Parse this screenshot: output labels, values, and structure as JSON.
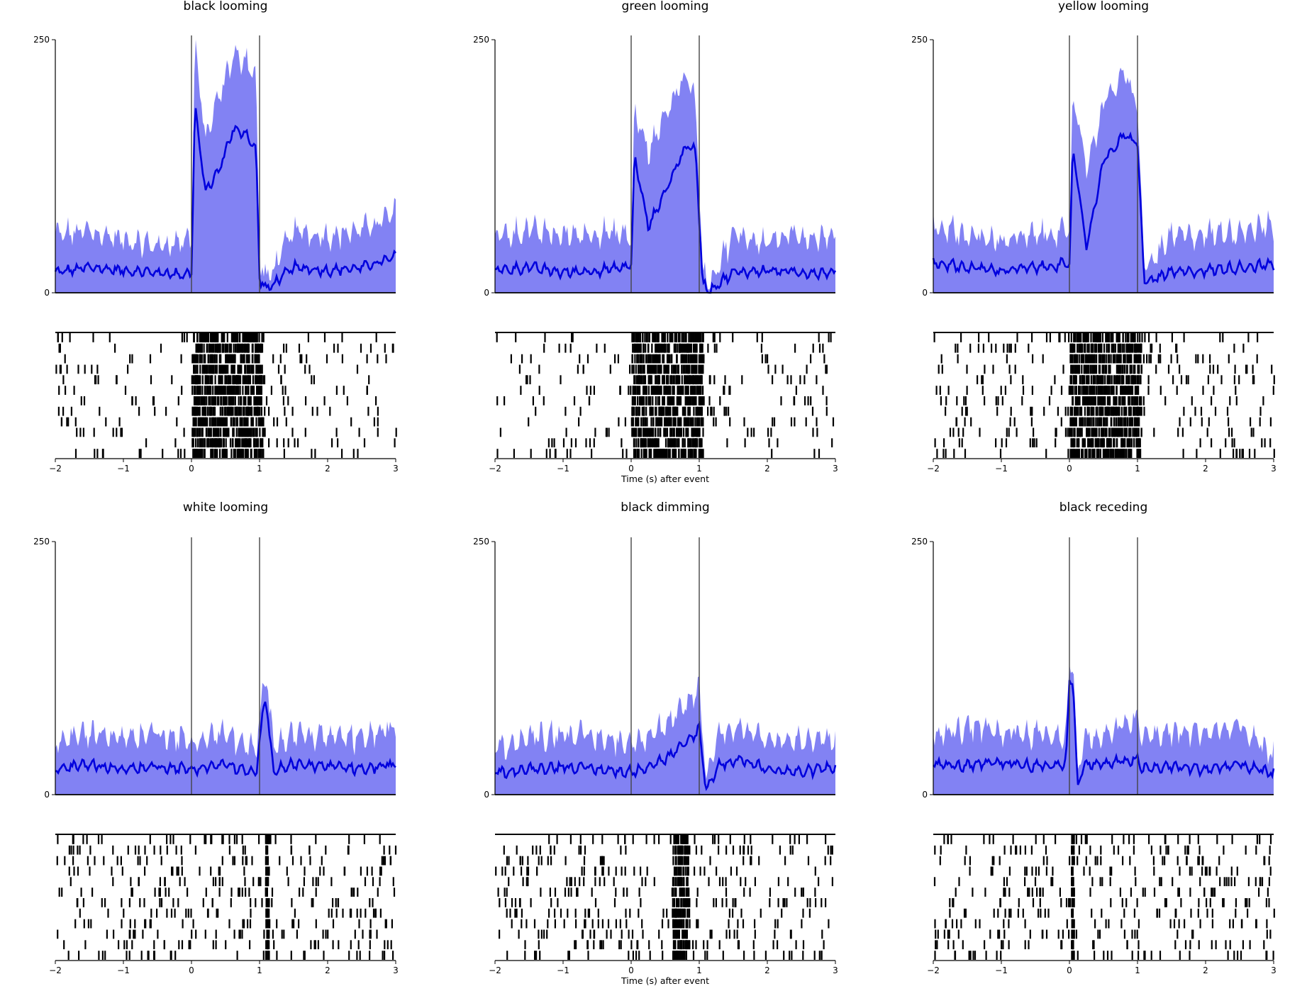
{
  "figure": {
    "xlabel": "Time (s) after event"
  },
  "chart_data": [
    {
      "type": "area",
      "title": "black looming",
      "xlabel": "",
      "xlim": [
        -2,
        3
      ],
      "ylim": [
        0,
        250
      ],
      "yticks": [
        0,
        250
      ],
      "xticks": [
        -2,
        -1,
        0,
        1,
        2,
        3
      ],
      "event_markers": [
        0,
        1
      ],
      "series": [
        {
          "role": "mean",
          "color": "#0000dd",
          "x": [
            -2,
            -1.5,
            -1,
            -0.5,
            -0.1,
            0,
            0.05,
            0.2,
            0.4,
            0.6,
            0.8,
            0.95,
            1,
            1.1,
            1.5,
            2,
            2.5,
            3
          ],
          "values": [
            20,
            25,
            22,
            20,
            18,
            20,
            185,
            100,
            120,
            160,
            158,
            140,
            15,
            3,
            25,
            22,
            25,
            35
          ]
        },
        {
          "role": "upper",
          "color": "#7b7bf2",
          "x": [
            -2,
            -1.5,
            -1,
            -0.5,
            -0.1,
            0,
            0.05,
            0.2,
            0.4,
            0.6,
            0.8,
            0.95,
            1,
            1.1,
            1.5,
            2,
            2.5,
            3
          ],
          "values": [
            55,
            60,
            50,
            45,
            50,
            55,
            245,
            150,
            190,
            230,
            230,
            210,
            30,
            10,
            60,
            55,
            60,
            78
          ]
        }
      ],
      "raster": {
        "trials": 12,
        "dense_window": [
          0,
          1.05
        ],
        "baseline_rate": "low"
      }
    },
    {
      "type": "area",
      "title": "green looming",
      "xlabel": "Time (s) after event",
      "xlim": [
        -2,
        3
      ],
      "ylim": [
        0,
        250
      ],
      "yticks": [
        0,
        250
      ],
      "xticks": [
        -2,
        -1,
        0,
        1,
        2,
        3
      ],
      "event_markers": [
        0,
        1
      ],
      "series": [
        {
          "role": "mean",
          "color": "#0000dd",
          "x": [
            -2,
            -1.5,
            -1,
            -0.5,
            -0.1,
            0,
            0.05,
            0.25,
            0.5,
            0.8,
            0.95,
            1.05,
            1.15,
            1.5,
            2,
            2.5,
            3
          ],
          "values": [
            22,
            25,
            20,
            22,
            25,
            28,
            135,
            65,
            100,
            145,
            140,
            10,
            2,
            20,
            22,
            20,
            20
          ]
        },
        {
          "role": "upper",
          "color": "#7b7bf2",
          "x": [
            -2,
            -1.5,
            -1,
            -0.5,
            -0.1,
            0,
            0.05,
            0.25,
            0.5,
            0.8,
            0.95,
            1.05,
            1.15,
            1.5,
            2,
            2.5,
            3
          ],
          "values": [
            55,
            60,
            55,
            58,
            55,
            50,
            180,
            135,
            175,
            215,
            185,
            20,
            8,
            55,
            50,
            55,
            52
          ]
        }
      ],
      "raster": {
        "trials": 12,
        "dense_window": [
          0,
          1.05
        ],
        "baseline_rate": "low"
      }
    },
    {
      "type": "area",
      "title": "yellow looming",
      "xlabel": "",
      "xlim": [
        -2,
        3
      ],
      "ylim": [
        0,
        250
      ],
      "yticks": [
        0,
        250
      ],
      "xticks": [
        -2,
        -1,
        0,
        1,
        2,
        3
      ],
      "event_markers": [
        0,
        1
      ],
      "series": [
        {
          "role": "mean",
          "color": "#0000dd",
          "x": [
            -2,
            -1.5,
            -1,
            -0.5,
            -0.1,
            0,
            0.05,
            0.25,
            0.5,
            0.8,
            0.95,
            1,
            1.1,
            1.5,
            2,
            2.5,
            3
          ],
          "values": [
            30,
            25,
            22,
            25,
            28,
            25,
            145,
            45,
            130,
            155,
            150,
            148,
            10,
            20,
            22,
            25,
            28
          ]
        },
        {
          "role": "upper",
          "color": "#7b7bf2",
          "x": [
            -2,
            -1.5,
            -1,
            -0.5,
            -0.1,
            0,
            0.05,
            0.25,
            0.5,
            0.8,
            0.95,
            1,
            1.1,
            1.5,
            2,
            2.5,
            3
          ],
          "values": [
            65,
            55,
            50,
            55,
            60,
            50,
            200,
            120,
            185,
            215,
            195,
            180,
            20,
            55,
            55,
            60,
            65
          ]
        }
      ],
      "raster": {
        "trials": 12,
        "dense_window": [
          0,
          1.05
        ],
        "baseline_rate": "medium"
      }
    },
    {
      "type": "area",
      "title": "white looming",
      "xlabel": "",
      "xlim": [
        -2,
        3
      ],
      "ylim": [
        0,
        250
      ],
      "yticks": [
        0,
        250
      ],
      "xticks": [
        -2,
        -1,
        0,
        1,
        2,
        3
      ],
      "event_markers": [
        0,
        1
      ],
      "series": [
        {
          "role": "mean",
          "color": "#0000dd",
          "x": [
            -2,
            -1.5,
            -1,
            -0.5,
            0,
            0.5,
            0.95,
            1.08,
            1.2,
            1.5,
            2,
            2.5,
            3
          ],
          "values": [
            25,
            30,
            25,
            28,
            25,
            30,
            20,
            100,
            25,
            30,
            28,
            25,
            30
          ]
        },
        {
          "role": "upper",
          "color": "#7b7bf2",
          "x": [
            -2,
            -1.5,
            -1,
            -0.5,
            0,
            0.5,
            0.95,
            1.08,
            1.2,
            1.5,
            2,
            2.5,
            3
          ],
          "values": [
            50,
            60,
            55,
            60,
            50,
            60,
            40,
            120,
            50,
            60,
            55,
            55,
            65
          ]
        }
      ],
      "raster": {
        "trials": 12,
        "dense_window": [
          1.08,
          1.13
        ],
        "baseline_rate": "high"
      }
    },
    {
      "type": "area",
      "title": "black dimming",
      "xlabel": "Time (s) after event",
      "xlim": [
        -2,
        3
      ],
      "ylim": [
        0,
        250
      ],
      "yticks": [
        0,
        250
      ],
      "xticks": [
        -2,
        -1,
        0,
        1,
        2,
        3
      ],
      "event_markers": [
        0,
        1
      ],
      "series": [
        {
          "role": "mean",
          "color": "#0000dd",
          "x": [
            -2,
            -1.5,
            -1,
            -0.5,
            0,
            0.5,
            0.8,
            1,
            1.1,
            1.3,
            1.6,
            2,
            2.5,
            3
          ],
          "values": [
            22,
            25,
            28,
            25,
            22,
            35,
            50,
            65,
            5,
            30,
            35,
            25,
            22,
            28
          ]
        },
        {
          "role": "upper",
          "color": "#7b7bf2",
          "x": [
            -2,
            -1.5,
            -1,
            -0.5,
            0,
            0.5,
            0.8,
            1,
            1.1,
            1.3,
            1.6,
            2,
            2.5,
            3
          ],
          "values": [
            45,
            55,
            60,
            55,
            50,
            65,
            85,
            105,
            15,
            60,
            65,
            55,
            50,
            55
          ]
        }
      ],
      "raster": {
        "trials": 12,
        "dense_window": [
          0.6,
          0.85
        ],
        "baseline_rate": "high"
      }
    },
    {
      "type": "area",
      "title": "black receding",
      "xlabel": "",
      "xlim": [
        -2,
        3
      ],
      "ylim": [
        0,
        250
      ],
      "yticks": [
        0,
        250
      ],
      "xticks": [
        -2,
        -1,
        0,
        1,
        2,
        3
      ],
      "event_markers": [
        0,
        1
      ],
      "series": [
        {
          "role": "mean",
          "color": "#0000dd",
          "x": [
            -2,
            -1.5,
            -1,
            -0.5,
            -0.05,
            0,
            0.05,
            0.12,
            0.2,
            0.5,
            1,
            1.05,
            1.5,
            2,
            2.5,
            3
          ],
          "values": [
            30,
            28,
            32,
            28,
            30,
            115,
            115,
            5,
            30,
            30,
            35,
            25,
            28,
            25,
            30,
            20
          ]
        },
        {
          "role": "upper",
          "color": "#7b7bf2",
          "x": [
            -2,
            -1.5,
            -1,
            -0.5,
            -0.05,
            0,
            0.05,
            0.12,
            0.2,
            0.5,
            1,
            1.05,
            1.5,
            2,
            2.5,
            3
          ],
          "values": [
            55,
            65,
            60,
            60,
            55,
            135,
            135,
            10,
            55,
            55,
            75,
            55,
            60,
            60,
            65,
            35
          ]
        }
      ],
      "raster": {
        "trials": 12,
        "dense_window": [
          0.02,
          0.06
        ],
        "baseline_rate": "high"
      }
    }
  ]
}
